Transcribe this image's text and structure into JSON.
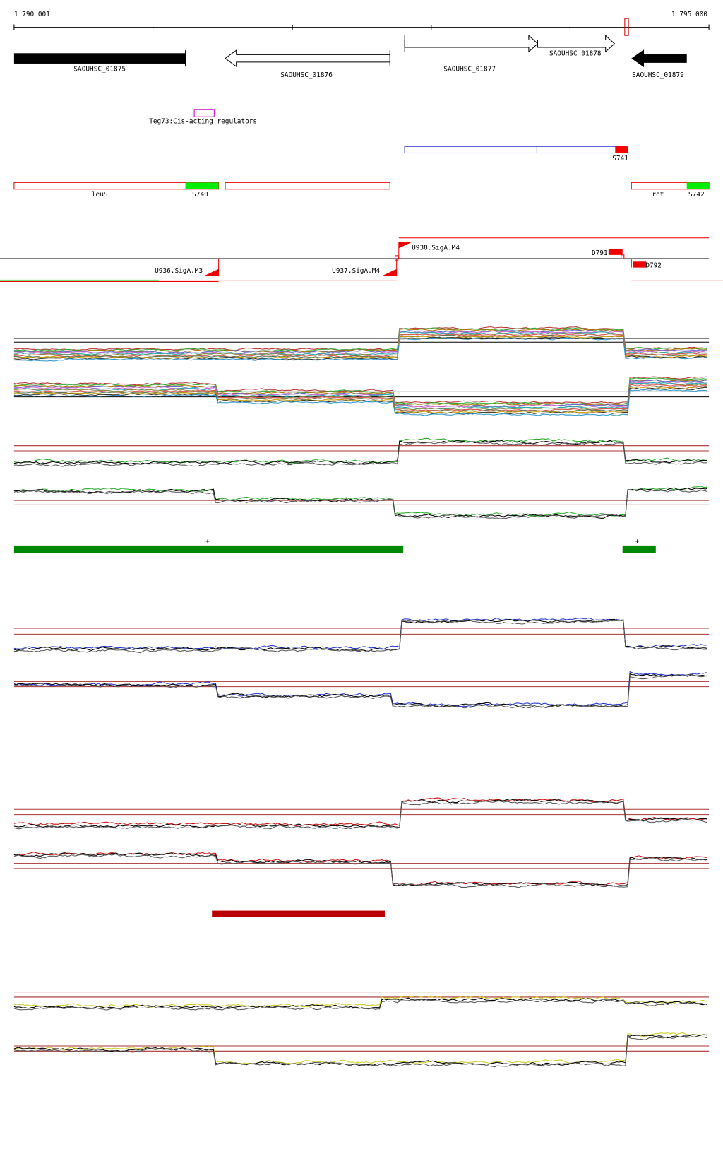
{
  "ruler": {
    "start": "1 790 001",
    "end": "1 795 000"
  },
  "genes": [
    {
      "label": "SAOUHSC_01875"
    },
    {
      "label": "SAOUHSC_01876"
    },
    {
      "label": "SAOUHSC_01877"
    },
    {
      "label": "SAOUHSC_01878"
    },
    {
      "label": "SAOUHSC_01879"
    }
  ],
  "regulators": {
    "label": "Teg73:Cis-acting regulators"
  },
  "segments": [
    {
      "label": "S741"
    },
    {
      "label": "leuS"
    },
    {
      "label": "S740"
    },
    {
      "label": "rot"
    },
    {
      "label": "S742"
    }
  ],
  "promoters": [
    {
      "label": "U936.SigA.M3"
    },
    {
      "label": "U937.SigA.M4"
    },
    {
      "label": "U938.SigA.M4"
    },
    {
      "label": "D791"
    },
    {
      "label": "D792"
    }
  ],
  "condition_marks": [
    "+",
    "+",
    "+"
  ]
}
